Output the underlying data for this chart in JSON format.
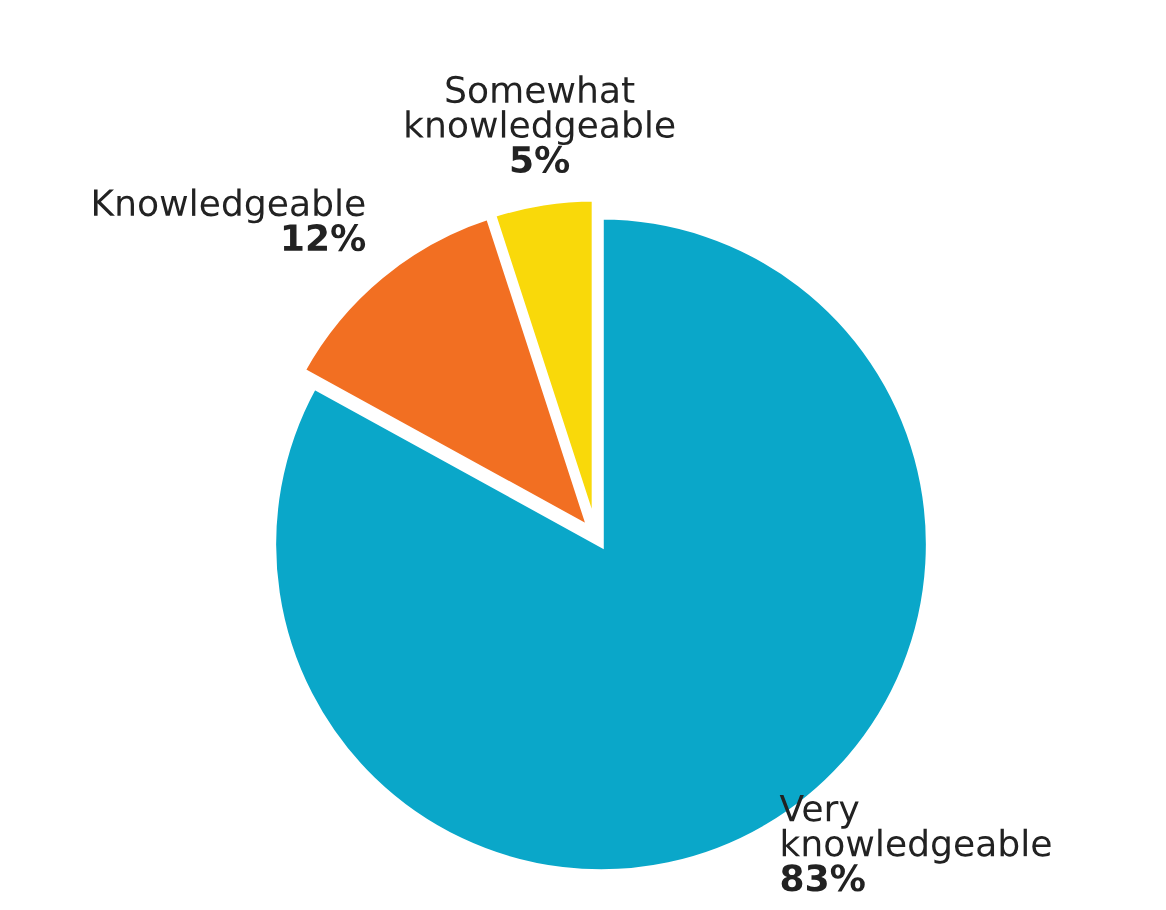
{
  "chart_data": {
    "type": "pie",
    "categories": [
      "Very knowledgeable",
      "Knowledgeable",
      "Somewhat knowledgeable"
    ],
    "values": [
      83,
      12,
      5
    ],
    "value_labels": [
      "83%",
      "12%",
      "5%"
    ],
    "colors": [
      "#0aa7c9",
      "#f26f22",
      "#f9d90a"
    ]
  }
}
